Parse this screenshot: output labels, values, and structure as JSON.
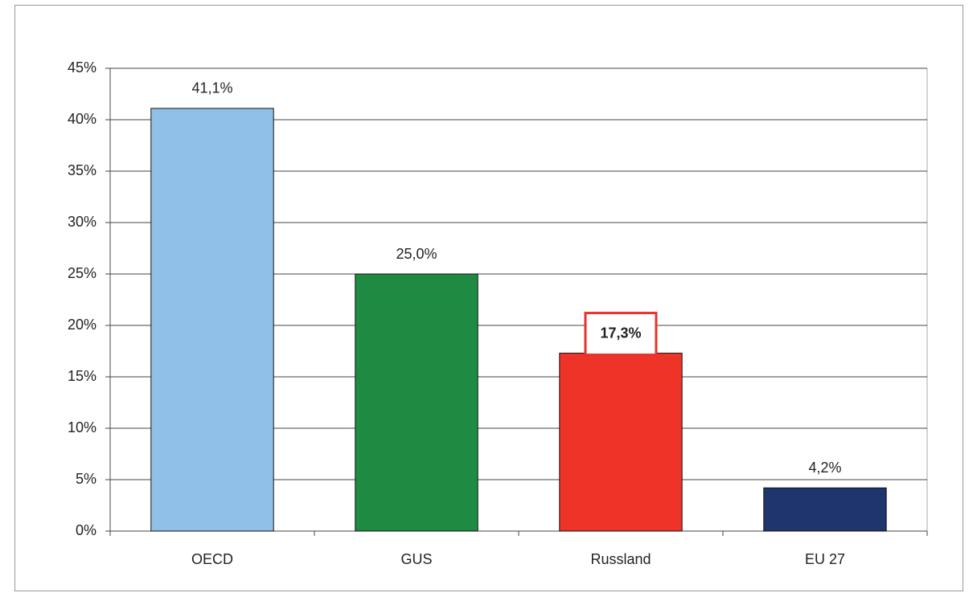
{
  "chart_data": {
    "type": "bar",
    "categories": [
      "OECD",
      "GUS",
      "Russland",
      "EU 27"
    ],
    "values": [
      41.1,
      25.0,
      17.3,
      4.2
    ],
    "value_labels": [
      "41,1%",
      "25,0%",
      "17,3%",
      "4,2%"
    ],
    "colors": [
      "#90bfe7",
      "#1f8a42",
      "#ee3329",
      "#1f356e"
    ],
    "highlighted": [
      false,
      false,
      true,
      false
    ],
    "highlight_color": "#e8322b",
    "ylim": [
      0,
      45
    ],
    "yticks": [
      {
        "value": 0,
        "label": "0%"
      },
      {
        "value": 5,
        "label": "5%"
      },
      {
        "value": 10,
        "label": "10%"
      },
      {
        "value": 15,
        "label": "15%"
      },
      {
        "value": 20,
        "label": "20%"
      },
      {
        "value": 25,
        "label": "25%"
      },
      {
        "value": 30,
        "label": "30%"
      },
      {
        "value": 35,
        "label": "35%"
      },
      {
        "value": 40,
        "label": "40%"
      },
      {
        "value": 45,
        "label": "45%"
      }
    ],
    "grid": true
  }
}
